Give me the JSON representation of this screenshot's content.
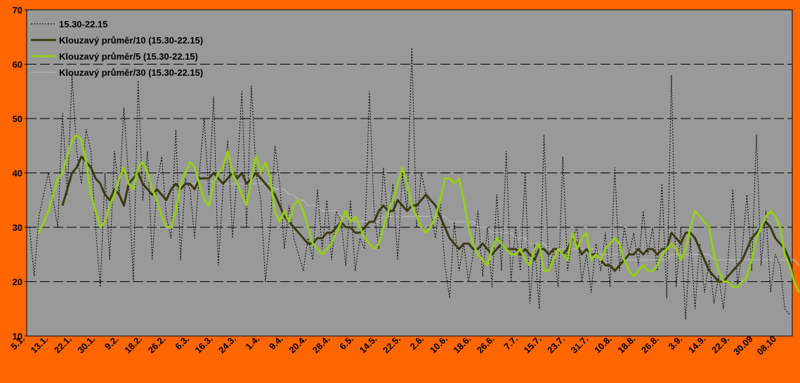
{
  "chart_data": {
    "type": "line",
    "title": "",
    "xlabel": "",
    "ylabel": "",
    "ylim": [
      10,
      70
    ],
    "yticks": [
      10,
      20,
      30,
      40,
      50,
      60,
      70
    ],
    "grid": "horizontal dashed at 20, 30, 40, 50, 60",
    "legend_position": "top-left",
    "x_tick_labels": [
      "5.1.",
      "13.1.",
      "22.1.",
      "30.1.",
      "9.2.",
      "18.2.",
      "26.2.",
      "6.3.",
      "16.3.",
      "24.3.",
      "1.4.",
      "9.4.",
      "20.4.",
      "28.4.",
      "6.5.",
      "14.5.",
      "22.5.",
      "2.6.",
      "10.6.",
      "18.6.",
      "26.6.",
      "7.7.",
      "15.7.",
      "23.7.",
      "31.7.",
      "10.8.",
      "18.8.",
      "26.8.",
      "3.9.",
      "14.9.",
      "22.9.",
      "30.09",
      "08.10"
    ],
    "colors": {
      "plot_background": "#999999",
      "page_background": "#ff6600",
      "raw": "#000000",
      "ma10": "#3a3a10",
      "ma5": "#99cc1a",
      "ma30": "#b3b3b3",
      "grid": "#000000"
    },
    "series": [
      {
        "name": "15.30-22.15",
        "style": "dotted",
        "values": [
          30,
          21,
          32,
          36,
          40,
          35,
          30,
          51,
          36,
          58,
          44,
          38,
          48,
          44,
          30,
          19,
          40,
          24,
          44,
          36,
          52,
          39,
          20,
          57,
          35,
          44,
          24,
          38,
          43,
          32,
          28,
          48,
          24,
          39,
          37,
          28,
          40,
          50,
          36,
          54,
          23,
          37,
          46,
          28,
          40,
          55,
          30,
          56,
          40,
          35,
          20,
          30,
          45,
          38,
          26,
          34,
          28,
          25,
          22,
          28,
          24,
          37,
          26,
          35,
          24,
          33,
          31,
          23,
          35,
          22,
          28,
          26,
          55,
          33,
          26,
          41,
          30,
          38,
          24,
          40,
          33,
          63,
          30,
          40,
          36,
          33,
          28,
          35,
          23,
          17,
          31,
          22,
          27,
          20,
          25,
          33,
          21,
          30,
          19,
          36,
          22,
          44,
          20,
          30,
          22,
          40,
          16,
          27,
          15,
          47,
          22,
          26,
          19,
          43,
          22,
          28,
          30,
          20,
          25,
          18,
          27,
          22,
          29,
          19,
          41,
          22,
          30,
          25,
          29,
          23,
          33,
          25,
          30,
          22,
          38,
          17,
          58,
          19,
          30,
          13,
          28,
          15,
          27,
          18,
          24,
          16,
          21,
          15,
          24,
          37,
          19,
          26,
          36,
          22,
          47,
          23,
          33,
          18,
          25,
          23,
          15,
          14
        ]
      },
      {
        "name": "Klouzavý průměr/10 (15.30-22.15)",
        "style": "solid-thick",
        "values": [
          null,
          null,
          null,
          null,
          null,
          null,
          null,
          34,
          37,
          40,
          41,
          43,
          42,
          41,
          39,
          38,
          36,
          35,
          37,
          36,
          34,
          38,
          39,
          40,
          38,
          37,
          36,
          37,
          36,
          35,
          37,
          38,
          37,
          38,
          38,
          37,
          39,
          39,
          39,
          40,
          39,
          38,
          39,
          40,
          39,
          40,
          38,
          39,
          40,
          39,
          38,
          37,
          36,
          34,
          32,
          31,
          30,
          29,
          28,
          27,
          27,
          28,
          28,
          29,
          29,
          30,
          31,
          30,
          30,
          29,
          29,
          30,
          31,
          31,
          33,
          34,
          33,
          33,
          35,
          34,
          33,
          34,
          34,
          35,
          36,
          35,
          34,
          32,
          30,
          28,
          27,
          26,
          27,
          27,
          26,
          26,
          27,
          26,
          25,
          26,
          27,
          26,
          26,
          26,
          25,
          26,
          25,
          24,
          26,
          26,
          25,
          26,
          26,
          25,
          26,
          28,
          27,
          25,
          26,
          25,
          25,
          24,
          23,
          23,
          22,
          23,
          24,
          25,
          25,
          26,
          25,
          26,
          26,
          25,
          26,
          26,
          29,
          28,
          27,
          29,
          29,
          28,
          26,
          24,
          22,
          21,
          20,
          20,
          21,
          22,
          23,
          24,
          26,
          28,
          29,
          30,
          31,
          30,
          28,
          27,
          26,
          24,
          20
        ]
      },
      {
        "name": "Klouzavý průměr/5 (15.30-22.15)",
        "style": "solid-thick",
        "values": [
          null,
          null,
          29,
          31,
          33,
          36,
          39,
          40,
          43,
          46,
          47,
          46,
          42,
          36,
          33,
          30,
          31,
          34,
          36,
          39,
          41,
          38,
          37,
          41,
          42,
          40,
          37,
          35,
          32,
          30,
          30,
          33,
          38,
          40,
          42,
          41,
          38,
          35,
          34,
          38,
          40,
          41,
          44,
          40,
          38,
          36,
          34,
          39,
          43,
          40,
          42,
          39,
          33,
          31,
          33,
          31,
          34,
          35,
          33,
          30,
          27,
          26,
          25,
          26,
          27,
          29,
          31,
          33,
          31,
          32,
          30,
          28,
          27,
          26,
          27,
          30,
          33,
          35,
          38,
          41,
          38,
          34,
          32,
          30,
          29,
          30,
          32,
          35,
          39,
          39,
          38,
          39,
          35,
          30,
          27,
          25,
          24,
          23,
          26,
          28,
          27,
          26,
          25,
          25,
          26,
          24,
          23,
          26,
          27,
          22,
          22,
          24,
          26,
          25,
          24,
          29,
          26,
          28,
          29,
          24,
          25,
          24,
          26,
          27,
          28,
          27,
          24,
          22,
          21,
          22,
          23,
          22,
          22,
          23,
          25,
          26,
          27,
          26,
          24,
          26,
          30,
          33,
          32,
          31,
          30,
          25,
          22,
          20,
          20,
          19,
          19,
          20,
          21,
          24,
          28,
          30,
          32,
          33,
          32,
          30,
          25,
          23,
          20,
          18
        ]
      },
      {
        "name": "Klouzavý průměr/30 (15.30-22.15)",
        "style": "solid-thin",
        "values": [
          null,
          null,
          null,
          null,
          null,
          null,
          null,
          null,
          null,
          null,
          null,
          null,
          null,
          null,
          null,
          null,
          null,
          null,
          null,
          null,
          null,
          null,
          null,
          null,
          null,
          null,
          null,
          null,
          null,
          null,
          38,
          38,
          38,
          38,
          38,
          38,
          39,
          39,
          39,
          38,
          38,
          38,
          38,
          38,
          38,
          38,
          38,
          38,
          38,
          38,
          38,
          38,
          37,
          37,
          37,
          36,
          36,
          35,
          35,
          34,
          34,
          34,
          33,
          33,
          33,
          33,
          32,
          32,
          32,
          31,
          31,
          31,
          31,
          31,
          31,
          32,
          32,
          32,
          32,
          32,
          32,
          32,
          32,
          32,
          32,
          32,
          32,
          32,
          32,
          31,
          31,
          31,
          31,
          31,
          31,
          30,
          30,
          30,
          29,
          29,
          29,
          29,
          29,
          28,
          28,
          28,
          27,
          27,
          27,
          27,
          26,
          26,
          26,
          26,
          26,
          26,
          26,
          26,
          26,
          26,
          26,
          25,
          25,
          25,
          25,
          25,
          24,
          24,
          24,
          24,
          24,
          24,
          24,
          24,
          24,
          24,
          25,
          25,
          25,
          25,
          25,
          25,
          25,
          25,
          25,
          24,
          24,
          24,
          24,
          24,
          24,
          24,
          24,
          24,
          24,
          24,
          24,
          24,
          24,
          24,
          24,
          24,
          24,
          23
        ]
      }
    ]
  }
}
